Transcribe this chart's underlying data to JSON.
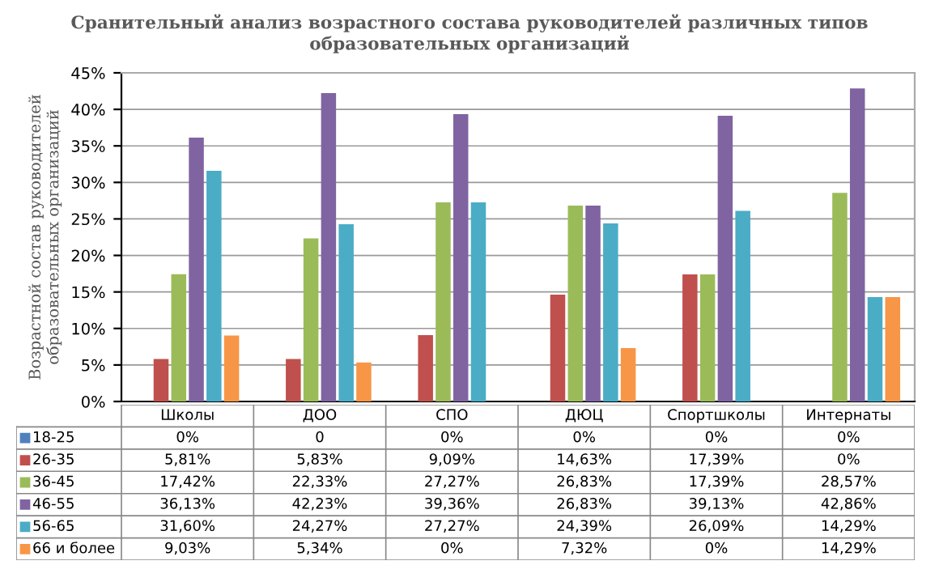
{
  "chart_data": {
    "type": "bar",
    "title": "Сранительный анализ возрастного состава руководителей различных типов\nобразовательных организаций",
    "ylabel": "Возрастной состав руководителей\nобразовательных организаций",
    "categories": [
      "Школы",
      "ДОО",
      "СПО",
      "ДЮЦ",
      "Спортшколы",
      "Интернаты"
    ],
    "series": [
      {
        "name": "18-25",
        "color": "#4f81bd",
        "values": [
          0,
          0,
          0,
          0,
          0,
          0
        ],
        "value_labels": [
          "0%",
          "0",
          "0%",
          "0%",
          "0%",
          "0%"
        ]
      },
      {
        "name": "26-35",
        "color": "#c0504d",
        "values": [
          5.81,
          5.83,
          9.09,
          14.63,
          17.39,
          0
        ],
        "value_labels": [
          "5,81%",
          "5,83%",
          "9,09%",
          "14,63%",
          "17,39%",
          "0%"
        ]
      },
      {
        "name": "36-45",
        "color": "#9bbb59",
        "values": [
          17.42,
          22.33,
          27.27,
          26.83,
          17.39,
          28.57
        ],
        "value_labels": [
          "17,42%",
          "22,33%",
          "27,27%",
          "26,83%",
          "17,39%",
          "28,57%"
        ]
      },
      {
        "name": "46-55",
        "color": "#8064a2",
        "values": [
          36.13,
          42.23,
          39.36,
          26.83,
          39.13,
          42.86
        ],
        "value_labels": [
          "36,13%",
          "42,23%",
          "39,36%",
          "26,83%",
          "39,13%",
          "42,86%"
        ]
      },
      {
        "name": "56-65",
        "color": "#4bacc6",
        "values": [
          31.6,
          24.27,
          27.27,
          24.39,
          26.09,
          14.29
        ],
        "value_labels": [
          "31,60%",
          "24,27%",
          "27,27%",
          "24,39%",
          "26,09%",
          "14,29%"
        ]
      },
      {
        "name": "66 и более",
        "color": "#f79646",
        "values": [
          9.03,
          5.34,
          0,
          7.32,
          0,
          14.29
        ],
        "value_labels": [
          "9,03%",
          "5,34%",
          "0%",
          "7,32%",
          "0%",
          "14,29%"
        ]
      }
    ],
    "ylim": [
      0,
      45
    ],
    "yticks": [
      {
        "value": 0,
        "label": "0%"
      },
      {
        "value": 5,
        "label": "5%"
      },
      {
        "value": 10,
        "label": "10%"
      },
      {
        "value": 15,
        "label": "15%"
      },
      {
        "value": 20,
        "label": "20%"
      },
      {
        "value": 25,
        "label": "25%"
      },
      {
        "value": 30,
        "label": "30%"
      },
      {
        "value": 35,
        "label": "35%"
      },
      {
        "value": 40,
        "label": "40%"
      },
      {
        "value": 45,
        "label": "45%"
      }
    ],
    "grid": "y",
    "legend": "bottom"
  }
}
